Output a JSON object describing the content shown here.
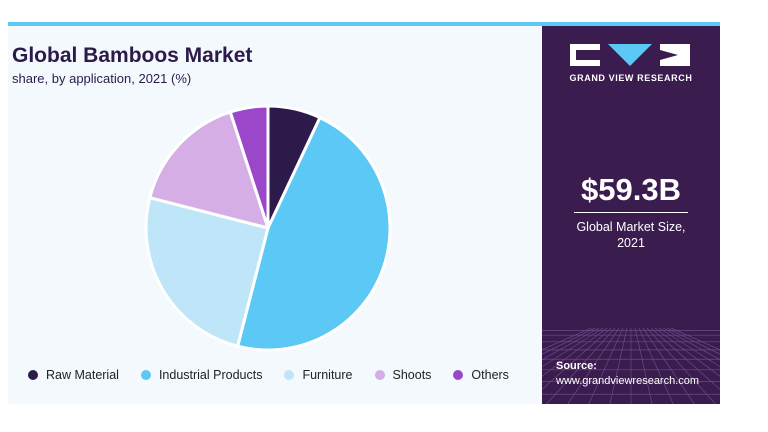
{
  "chart_data": {
    "type": "pie",
    "title": "Global Bamboos Market",
    "subtitle": "share, by application, 2021 (%)",
    "categories": [
      "Raw Material",
      "Industrial Products",
      "Furniture",
      "Shoots",
      "Others"
    ],
    "values": [
      7,
      47,
      25,
      16,
      5
    ],
    "colors": [
      "#2b1a4a",
      "#5bc8f5",
      "#bfe6f8",
      "#d5aee6",
      "#9a47c9"
    ],
    "legend_position": "bottom"
  },
  "sidebar": {
    "brand": "GRAND VIEW RESEARCH",
    "market_value": "$59.3B",
    "market_label_line1": "Global Market Size,",
    "market_label_line2": "2021",
    "source_label": "Source:",
    "source_url": "www.grandviewresearch.com"
  },
  "colors": {
    "sidebar_bg": "#3b1c4f",
    "accent": "#5bc8f5",
    "card_bg": "#f3f9fd"
  }
}
